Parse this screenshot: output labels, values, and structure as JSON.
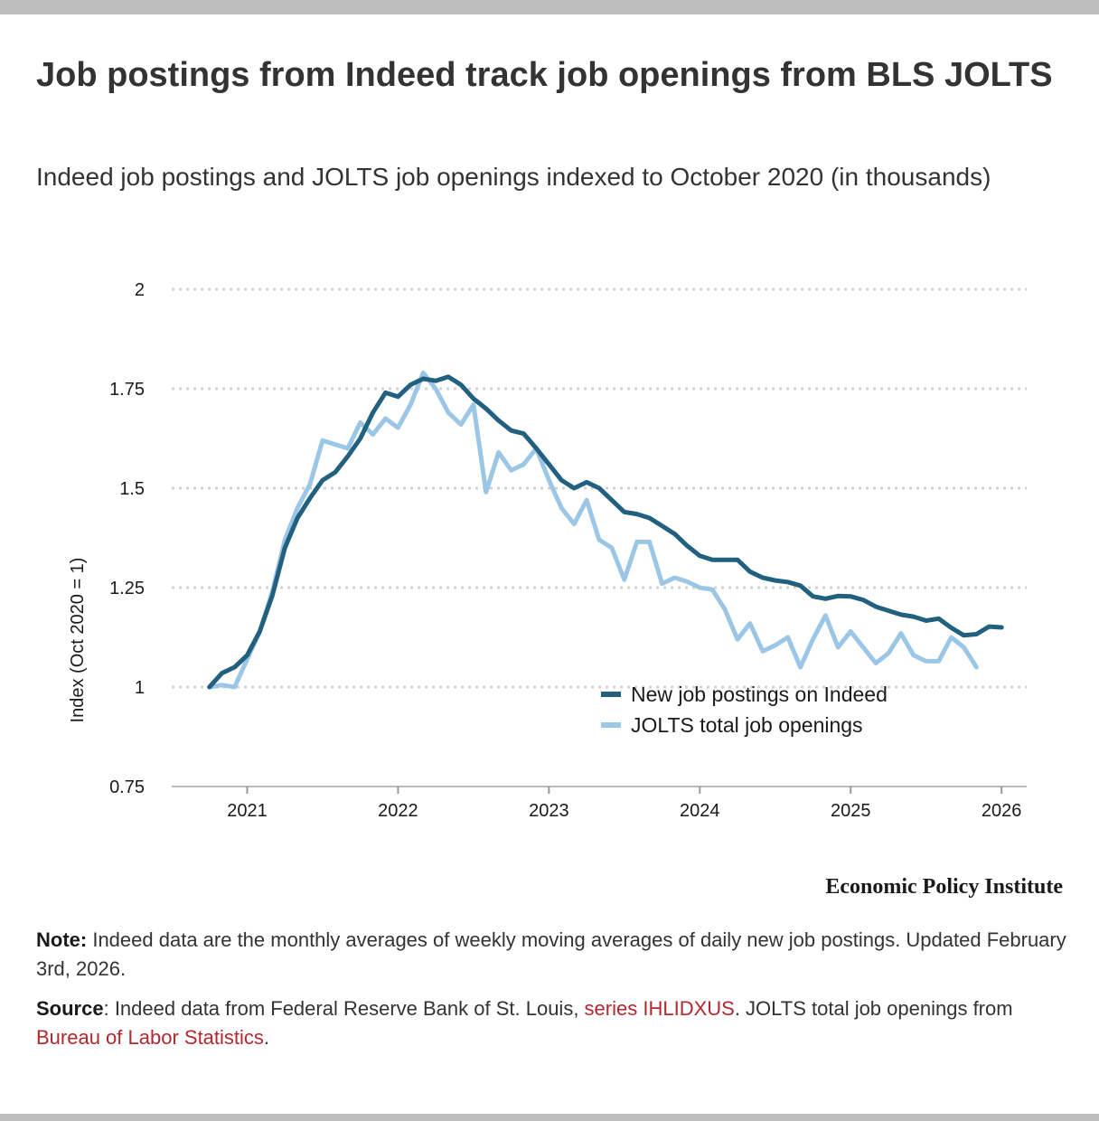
{
  "title": "Job postings from Indeed track job openings from BLS JOLTS",
  "subtitle": "Indeed job postings and JOLTS job openings indexed to October 2020 (in thousands)",
  "brand": "Economic Policy Institute",
  "note": {
    "label": "Note:",
    "text": " Indeed data are the monthly averages of weekly moving averages of daily new job postings. Updated February 3rd, 2026."
  },
  "source": {
    "label": "Source",
    "text1": ": Indeed data from Federal Reserve Bank of St. Louis, ",
    "link1": "series IHLIDXUS",
    "text2": ". JOLTS total job openings from ",
    "link2": "Bureau of Labor Statistics",
    "text3": "."
  },
  "colors": {
    "indeed": "#21607f",
    "jolts": "#9cc6e6",
    "link": "#b3282d"
  },
  "chart_data": {
    "type": "line",
    "title": "Job postings from Indeed track job openings from BLS JOLTS",
    "xlabel": "",
    "ylabel": "Index (Oct 2020 = 1)",
    "ylim": [
      0.75,
      2
    ],
    "xlim": [
      "2020-07",
      "2026-03"
    ],
    "yticks": [
      0.75,
      1,
      1.25,
      1.5,
      1.75,
      2
    ],
    "ytick_labels": [
      "0.75",
      "1",
      "1.25",
      "1.5",
      "1.75",
      "2"
    ],
    "xticks": [
      "2021-01",
      "2022-01",
      "2023-01",
      "2024-01",
      "2025-01",
      "2026-01"
    ],
    "xtick_labels": [
      "2021",
      "2022",
      "2023",
      "2024",
      "2025",
      "2026"
    ],
    "grid": "horizontal dotted",
    "legend": "bottom-right",
    "series": [
      {
        "name": "New job postings on Indeed",
        "color": "#21607f",
        "x": [
          "2020-10",
          "2020-11",
          "2020-12",
          "2021-01",
          "2021-02",
          "2021-03",
          "2021-04",
          "2021-05",
          "2021-06",
          "2021-07",
          "2021-08",
          "2021-09",
          "2021-10",
          "2021-11",
          "2021-12",
          "2022-01",
          "2022-02",
          "2022-03",
          "2022-04",
          "2022-05",
          "2022-06",
          "2022-07",
          "2022-08",
          "2022-09",
          "2022-10",
          "2022-11",
          "2022-12",
          "2023-01",
          "2023-02",
          "2023-03",
          "2023-04",
          "2023-05",
          "2023-06",
          "2023-07",
          "2023-08",
          "2023-09",
          "2023-10",
          "2023-11",
          "2023-12",
          "2024-01",
          "2024-02",
          "2024-03",
          "2024-04",
          "2024-05",
          "2024-06",
          "2024-07",
          "2024-08",
          "2024-09",
          "2024-10",
          "2024-11",
          "2024-12",
          "2025-01",
          "2025-02",
          "2025-03",
          "2025-04",
          "2025-05",
          "2025-06",
          "2025-07",
          "2025-08",
          "2025-09",
          "2025-10",
          "2025-11",
          "2025-12",
          "2026-01"
        ],
        "values": [
          1.0,
          1.035,
          1.05,
          1.08,
          1.14,
          1.23,
          1.35,
          1.425,
          1.475,
          1.52,
          1.54,
          1.58,
          1.625,
          1.69,
          1.74,
          1.73,
          1.76,
          1.775,
          1.77,
          1.78,
          1.76,
          1.725,
          1.7,
          1.67,
          1.645,
          1.637,
          1.6,
          1.56,
          1.52,
          1.5,
          1.515,
          1.5,
          1.47,
          1.44,
          1.435,
          1.425,
          1.405,
          1.385,
          1.355,
          1.33,
          1.32,
          1.32,
          1.32,
          1.29,
          1.275,
          1.268,
          1.264,
          1.255,
          1.228,
          1.222,
          1.229,
          1.228,
          1.219,
          1.202,
          1.192,
          1.182,
          1.177,
          1.167,
          1.172,
          1.149,
          1.13,
          1.133,
          1.152,
          1.15
        ]
      },
      {
        "name": "JOLTS total job openings",
        "color": "#9cc6e6",
        "x": [
          "2020-10",
          "2020-11",
          "2020-12",
          "2021-01",
          "2021-02",
          "2021-03",
          "2021-04",
          "2021-05",
          "2021-06",
          "2021-07",
          "2021-08",
          "2021-09",
          "2021-10",
          "2021-11",
          "2021-12",
          "2022-01",
          "2022-02",
          "2022-03",
          "2022-04",
          "2022-05",
          "2022-06",
          "2022-07",
          "2022-08",
          "2022-09",
          "2022-10",
          "2022-11",
          "2022-12",
          "2023-01",
          "2023-02",
          "2023-03",
          "2023-04",
          "2023-05",
          "2023-06",
          "2023-07",
          "2023-08",
          "2023-09",
          "2023-10",
          "2023-11",
          "2023-12",
          "2024-01",
          "2024-02",
          "2024-03",
          "2024-04",
          "2024-05",
          "2024-06",
          "2024-07",
          "2024-08",
          "2024-09",
          "2024-10",
          "2024-11",
          "2024-12",
          "2025-01",
          "2025-02",
          "2025-03",
          "2025-04",
          "2025-05",
          "2025-06",
          "2025-07",
          "2025-08",
          "2025-09",
          "2025-10",
          "2025-11"
        ],
        "values": [
          1.0,
          1.005,
          1.0,
          1.07,
          1.14,
          1.24,
          1.37,
          1.45,
          1.51,
          1.62,
          1.61,
          1.6,
          1.665,
          1.635,
          1.675,
          1.652,
          1.71,
          1.79,
          1.75,
          1.69,
          1.66,
          1.71,
          1.49,
          1.59,
          1.545,
          1.56,
          1.6,
          1.52,
          1.45,
          1.41,
          1.47,
          1.37,
          1.35,
          1.27,
          1.365,
          1.365,
          1.26,
          1.275,
          1.265,
          1.25,
          1.245,
          1.195,
          1.12,
          1.16,
          1.09,
          1.105,
          1.125,
          1.05,
          1.12,
          1.18,
          1.1,
          1.14,
          1.1,
          1.06,
          1.085,
          1.135,
          1.08,
          1.065,
          1.065,
          1.125,
          1.1,
          1.05
        ]
      }
    ]
  }
}
